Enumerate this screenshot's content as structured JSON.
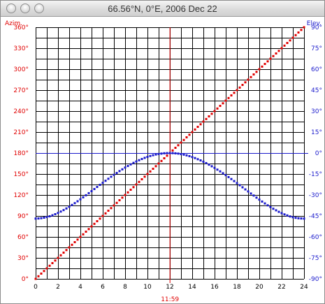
{
  "window": {
    "title": "66.56°N, 0°E, 2006 Dec 22"
  },
  "colors": {
    "azimuth": "#e00000",
    "elevation": "#1a1acc",
    "grid": "#000000",
    "noon_line": "#e00000",
    "horizon_line": "#1a1acc"
  },
  "chart_data": {
    "type": "scatter",
    "title": "",
    "xlabel": "",
    "x_ticks": [
      "0",
      "2",
      "4",
      "6",
      "8",
      "10",
      "12",
      "14",
      "16",
      "18",
      "20",
      "22",
      "24"
    ],
    "xlim": [
      0,
      24
    ],
    "grid": true,
    "noon_marker": {
      "x": 11.98,
      "label": "11:59"
    },
    "horizon_marker": {
      "elevation": 0
    },
    "left_axis": {
      "label": "Azim.",
      "ylim": [
        0,
        360
      ],
      "ticks": [
        "0°",
        "30°",
        "60°",
        "90°",
        "120°",
        "150°",
        "180°",
        "210°",
        "240°",
        "270°",
        "300°",
        "330°",
        "360°"
      ]
    },
    "right_axis": {
      "label": "Elev.",
      "ylim": [
        -90,
        90
      ],
      "ticks": [
        "-90°",
        "-75°",
        "-60°",
        "-45°",
        "-30°",
        "-15°",
        "0°",
        "15°",
        "30°",
        "45°",
        "60°",
        "75°",
        "90°"
      ]
    },
    "series": [
      {
        "name": "Azim.",
        "axis": "left",
        "color": "#e00000",
        "model": {
          "type": "linear",
          "x_start": 0,
          "y_start": 0,
          "x_end": 24,
          "y_end": 360,
          "step_hours": 0.25
        }
      },
      {
        "name": "Elev.",
        "axis": "right",
        "color": "#1a1acc",
        "model": {
          "type": "solar_elevation",
          "latitude": 66.56,
          "declination": -23.44,
          "noon": 11.98,
          "step_hours": 0.25
        }
      }
    ]
  }
}
